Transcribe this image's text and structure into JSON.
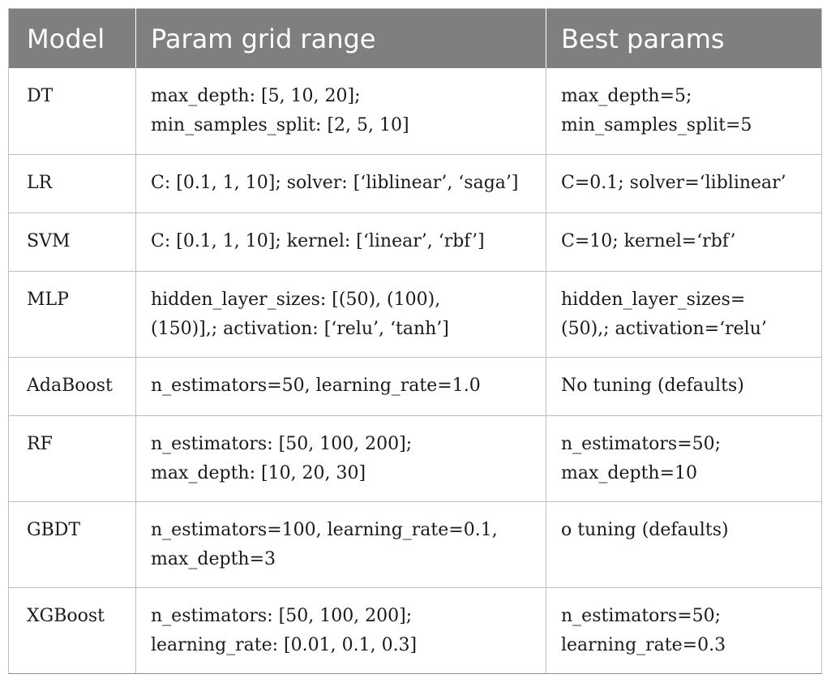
{
  "table": {
    "headers": [
      "Model",
      "Param grid range",
      "Best params"
    ],
    "rows": [
      {
        "model": "DT",
        "grid": [
          "max_depth: [5, 10, 20];",
          "min_samples_split: [2, 5, 10]"
        ],
        "best": [
          "max_depth=5;",
          "min_samples_split=5"
        ]
      },
      {
        "model": "LR",
        "grid": [
          "C: [0.1, 1, 10]; solver: [‘liblinear’, ‘saga’]"
        ],
        "best": [
          "C=0.1; solver=‘liblinear’"
        ]
      },
      {
        "model": "SVM",
        "grid": [
          "C: [0.1, 1, 10]; kernel: [‘linear’, ‘rbf’]"
        ],
        "best": [
          "C=10; kernel=‘rbf’"
        ]
      },
      {
        "model": "MLP",
        "grid": [
          "hidden_layer_sizes: [(50), (100),",
          "(150)],; activation: [‘relu’, ‘tanh’]"
        ],
        "best": [
          "hidden_layer_sizes=",
          "(50),; activation=‘relu’"
        ]
      },
      {
        "model": "AdaBoost",
        "grid": [
          "n_estimators=50, learning_rate=1.0"
        ],
        "best": [
          "No tuning (defaults)"
        ]
      },
      {
        "model": "RF",
        "grid": [
          "n_estimators: [50, 100, 200];",
          "max_depth: [10, 20, 30]"
        ],
        "best": [
          "n_estimators=50;",
          "max_depth=10"
        ]
      },
      {
        "model": "GBDT",
        "grid": [
          "n_estimators=100, learning_rate=0.1,",
          "max_depth=3"
        ],
        "best": [
          "o tuning (defaults)"
        ]
      },
      {
        "model": "XGBoost",
        "grid": [
          "n_estimators: [50, 100, 200];",
          "learning_rate: [0.01, 0.1, 0.3]"
        ],
        "best": [
          "n_estimators=50;",
          "learning_rate=0.3"
        ]
      }
    ]
  }
}
